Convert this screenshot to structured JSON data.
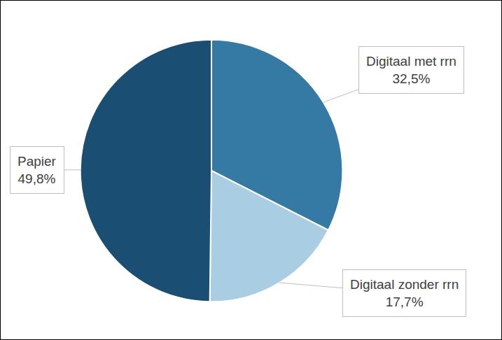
{
  "chart_data": {
    "type": "pie",
    "categories": [
      "Digitaal met rrn",
      "Digitaal zonder rrn",
      "Papier"
    ],
    "values": [
      32.5,
      17.7,
      49.8
    ],
    "value_labels": [
      "32,5%",
      "17,7%",
      "49,8%"
    ],
    "colors": [
      "#3579a5",
      "#a9cde3",
      "#1a4e72"
    ],
    "data_labels": true
  }
}
